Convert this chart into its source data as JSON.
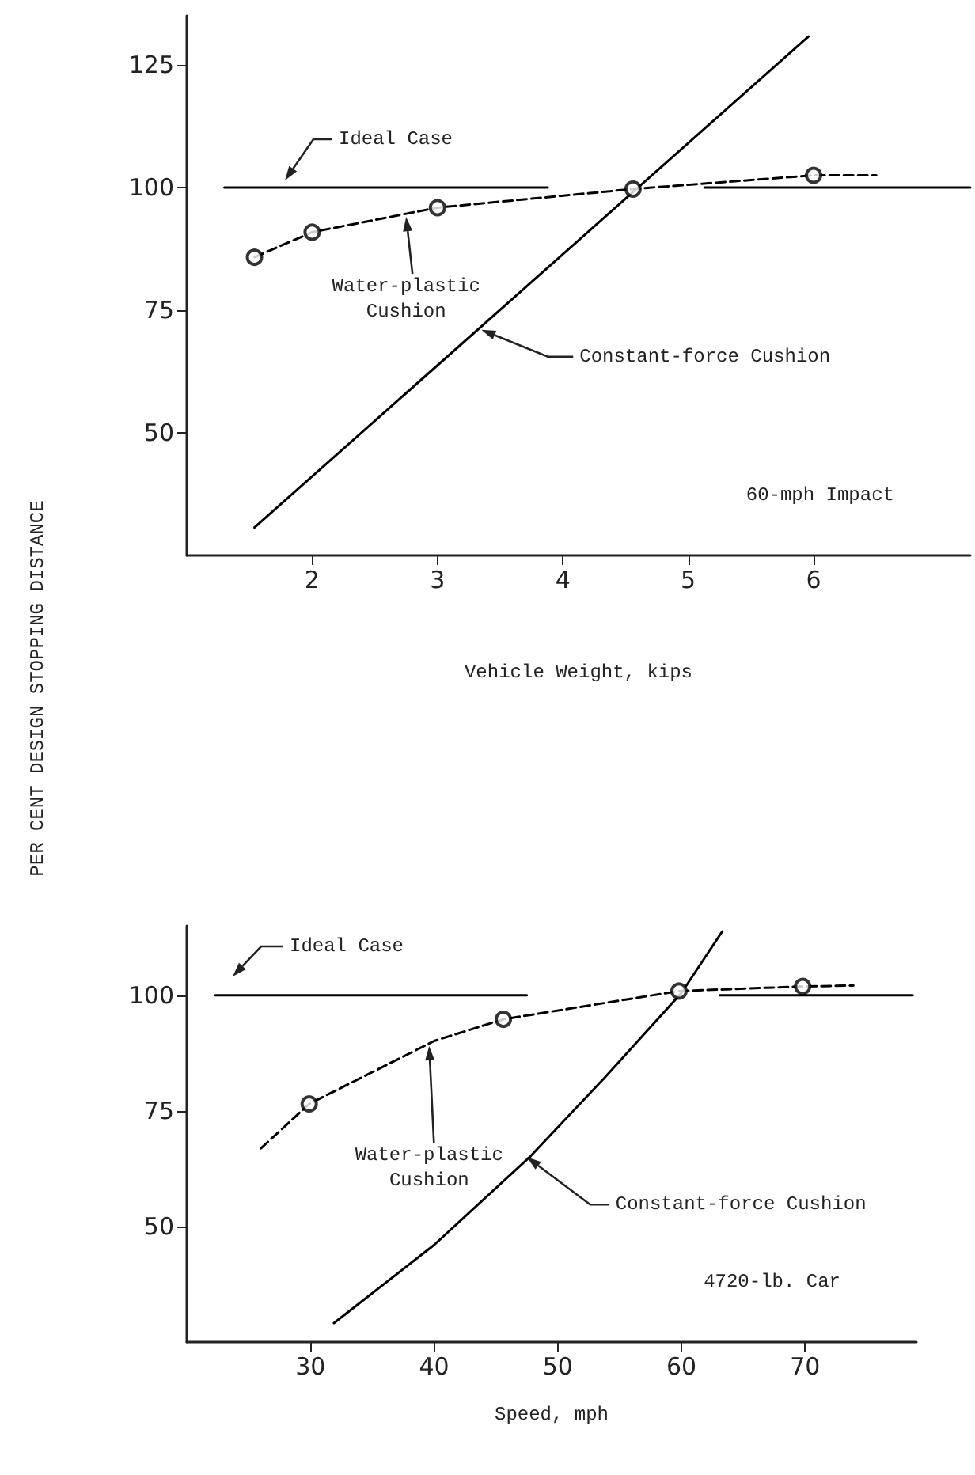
{
  "chart_data": [
    {
      "type": "line",
      "xlabel": "Vehicle Weight, kips",
      "ylabel": "PER CENT DESIGN STOPPING DISTANCE",
      "xlim": [
        1,
        7.25
      ],
      "xticks": [
        2,
        3,
        4,
        5,
        6
      ],
      "ylim": [
        25,
        135
      ],
      "yticks": [
        50,
        75,
        100,
        125
      ],
      "grid": false,
      "series": [
        {
          "color": "#000000",
          "line_style": "solid",
          "marker": "none",
          "x": [
            1.3,
            3.88,
            4.5,
            5.13,
            7.25
          ],
          "values": [
            100,
            100,
            null,
            100,
            100
          ]
        },
        {
          "color": "#000000",
          "line_style": "solid",
          "marker": "none",
          "x": [
            1.54,
            5.96
          ],
          "values": [
            30.7,
            130.8
          ]
        },
        {
          "color": "#000000",
          "line_style": "dashed",
          "marker": "none",
          "x": [
            1.54,
            2,
            3,
            4.56,
            6,
            6.5
          ],
          "values": [
            85.8,
            90.9,
            95.9,
            99.7,
            102.5,
            102.5
          ]
        },
        {
          "type": "scatter",
          "color": "#000000",
          "marker": "circle",
          "x": [
            1.54,
            2,
            3,
            4.56,
            6
          ],
          "values": [
            85.8,
            90.9,
            95.9,
            99.7,
            102.5
          ]
        }
      ],
      "annotations": [
        "Ideal Case",
        {
          "text": "Water-plastic\nCushion",
          "x": 2.75,
          "y": 94
        },
        {
          "text": "Constant-force Cushion",
          "x": 3.35,
          "y": 71
        },
        "60-mph Impact"
      ]
    },
    {
      "type": "line",
      "xlabel": "Speed, mph",
      "xlim": [
        20,
        79
      ],
      "xticks": [
        30,
        40,
        50,
        60,
        70
      ],
      "ylim": [
        25,
        115
      ],
      "yticks": [
        50,
        75,
        100
      ],
      "grid": false,
      "series": [
        {
          "color": "#000000",
          "line_style": "solid",
          "marker": "none",
          "x": [
            22.3,
            47.5,
            55,
            63.1,
            78.7
          ],
          "values": [
            100,
            100,
            null,
            100,
            100
          ]
        },
        {
          "color": "#000000",
          "line_style": "solid",
          "marker": "none",
          "x": [
            31.9,
            40,
            47.8,
            53.8,
            60,
            63.3
          ],
          "values": [
            29.1,
            46,
            65.2,
            82.2,
            100.5,
            113.8
          ]
        },
        {
          "color": "#000000",
          "line_style": "dashed",
          "marker": "none",
          "x": [
            26,
            29.9,
            40,
            45.6,
            59.8,
            69.8,
            73.9
          ],
          "values": [
            66.9,
            76.5,
            90.1,
            94.8,
            100.9,
            101.9,
            102.1
          ]
        },
        {
          "type": "scatter",
          "color": "#000000",
          "marker": "circle",
          "x": [
            29.9,
            45.6,
            59.8,
            69.8
          ],
          "values": [
            76.5,
            94.8,
            100.9,
            101.9
          ]
        }
      ],
      "annotations": [
        "Ideal Case",
        {
          "text": "Water-plastic\nCushion",
          "x": 39.6,
          "y": 89
        },
        {
          "text": "Constant-force Cushion",
          "x": 47.5,
          "y": 65
        },
        "4720-lb. Car"
      ]
    }
  ]
}
